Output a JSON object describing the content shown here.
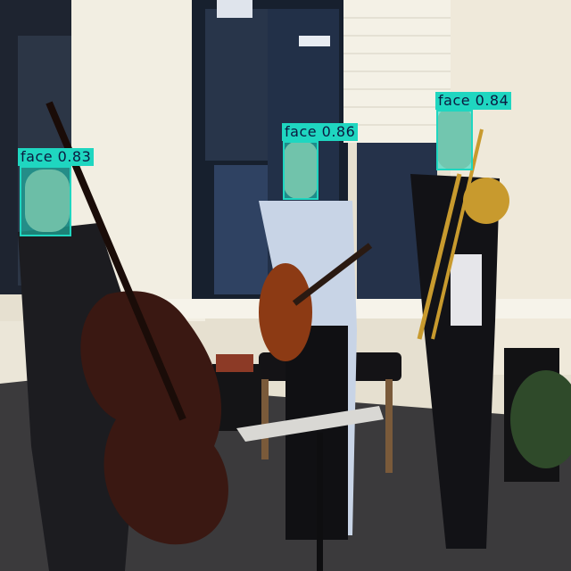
{
  "image": {
    "description_free": true,
    "colors": {
      "wall": "#e9e4d6",
      "window_dark": "#1f2a3a",
      "floor": "#3c3b3d",
      "detection": "#1fd6c0",
      "label_text": "#0b1a40"
    }
  },
  "detections": [
    {
      "class": "face",
      "score": "0.83",
      "text": "face 0.83"
    },
    {
      "class": "face",
      "score": "0.86",
      "text": "face 0.86"
    },
    {
      "class": "face",
      "score": "0.84",
      "text": "face 0.84"
    }
  ]
}
